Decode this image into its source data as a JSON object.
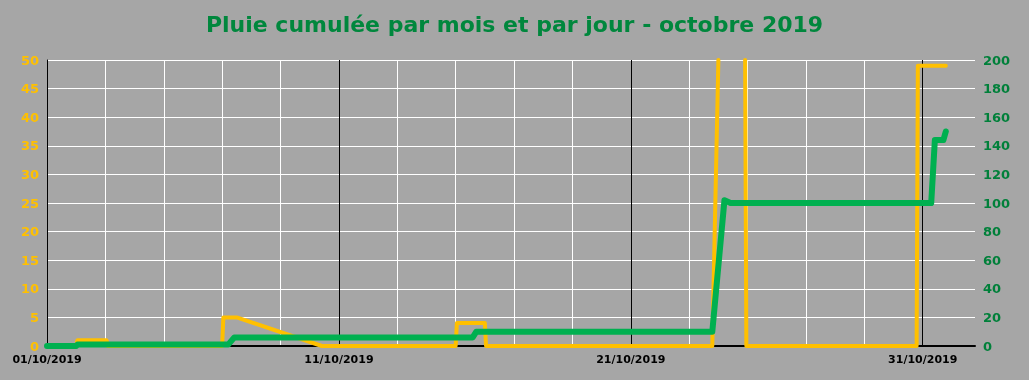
{
  "chart_data": {
    "type": "line",
    "title": "Pluie cumulée par mois et par jour - octobre 2019",
    "xlim": [
      "2019-10-01T00:00",
      "2019-11-01T19:00"
    ],
    "xticks": [
      {
        "value": "2019-10-01T00:00",
        "label": "01/10/2019"
      },
      {
        "value": "2019-10-03T00:00",
        "label": null
      },
      {
        "value": "2019-10-05T00:00",
        "label": null
      },
      {
        "value": "2019-10-07T00:00",
        "label": null
      },
      {
        "value": "2019-10-09T00:00",
        "label": null
      },
      {
        "value": "2019-10-11T00:00",
        "label": "11/10/2019"
      },
      {
        "value": "2019-10-13T00:00",
        "label": null
      },
      {
        "value": "2019-10-15T00:00",
        "label": null
      },
      {
        "value": "2019-10-17T00:00",
        "label": null
      },
      {
        "value": "2019-10-19T00:00",
        "label": null
      },
      {
        "value": "2019-10-21T00:00",
        "label": "21/10/2019"
      },
      {
        "value": "2019-10-23T00:00",
        "label": null
      },
      {
        "value": "2019-10-25T00:00",
        "label": null
      },
      {
        "value": "2019-10-27T00:00",
        "label": null
      },
      {
        "value": "2019-10-29T00:00",
        "label": null
      },
      {
        "value": "2019-10-31T00:00",
        "label": "31/10/2019"
      }
    ],
    "ylim": [
      0,
      50
    ],
    "yticks": [
      0,
      5,
      10,
      15,
      20,
      25,
      30,
      35,
      40,
      45,
      50
    ],
    "y2lim": [
      0,
      200
    ],
    "y2ticks": [
      0,
      20,
      40,
      60,
      80,
      100,
      120,
      140,
      160,
      180,
      200
    ],
    "grid": true,
    "marker": "none",
    "line_style": "solid",
    "series": [
      {
        "color": "#ffc000",
        "x": [
          "2019-10-01T00:00",
          "2019-10-02T00:00",
          "2019-10-02T01:00",
          "2019-10-03T01:00",
          "2019-10-03T02:00",
          "2019-10-07T00:00",
          "2019-10-07T01:00",
          "2019-10-07T12:00",
          "2019-10-10T10:00",
          "2019-10-15T00:00",
          "2019-10-15T01:00",
          "2019-10-16T00:00",
          "2019-10-16T01:00",
          "2019-10-23T19:00",
          "2019-10-24T00:00",
          "2019-10-24T11:00",
          "2019-10-24T22:00",
          "2019-10-24T23:00",
          "2019-10-30T19:00",
          "2019-10-30T20:00",
          "2019-10-31T19:00"
        ],
        "values": [
          0,
          0,
          1,
          1,
          0,
          0,
          5,
          5,
          0,
          0,
          4,
          4,
          0,
          0,
          50,
          null,
          50,
          0,
          0,
          49,
          49
        ]
      },
      {
        "color": "#00b050",
        "axis": "y2",
        "x": [
          "2019-10-01T00:00",
          "2019-10-02T00:00",
          "2019-10-02T01:00",
          "2019-10-07T05:00",
          "2019-10-07T10:00",
          "2019-10-15T14:00",
          "2019-10-15T17:00",
          "2019-10-23T19:00",
          "2019-10-24T05:00",
          "2019-10-24T10:00",
          "2019-10-31T07:00",
          "2019-10-31T10:00",
          "2019-10-31T17:00",
          "2019-10-31T19:00"
        ],
        "values": [
          0,
          0,
          1,
          1,
          6,
          6,
          10,
          10,
          102,
          100,
          100,
          144,
          144,
          150
        ]
      }
    ]
  }
}
